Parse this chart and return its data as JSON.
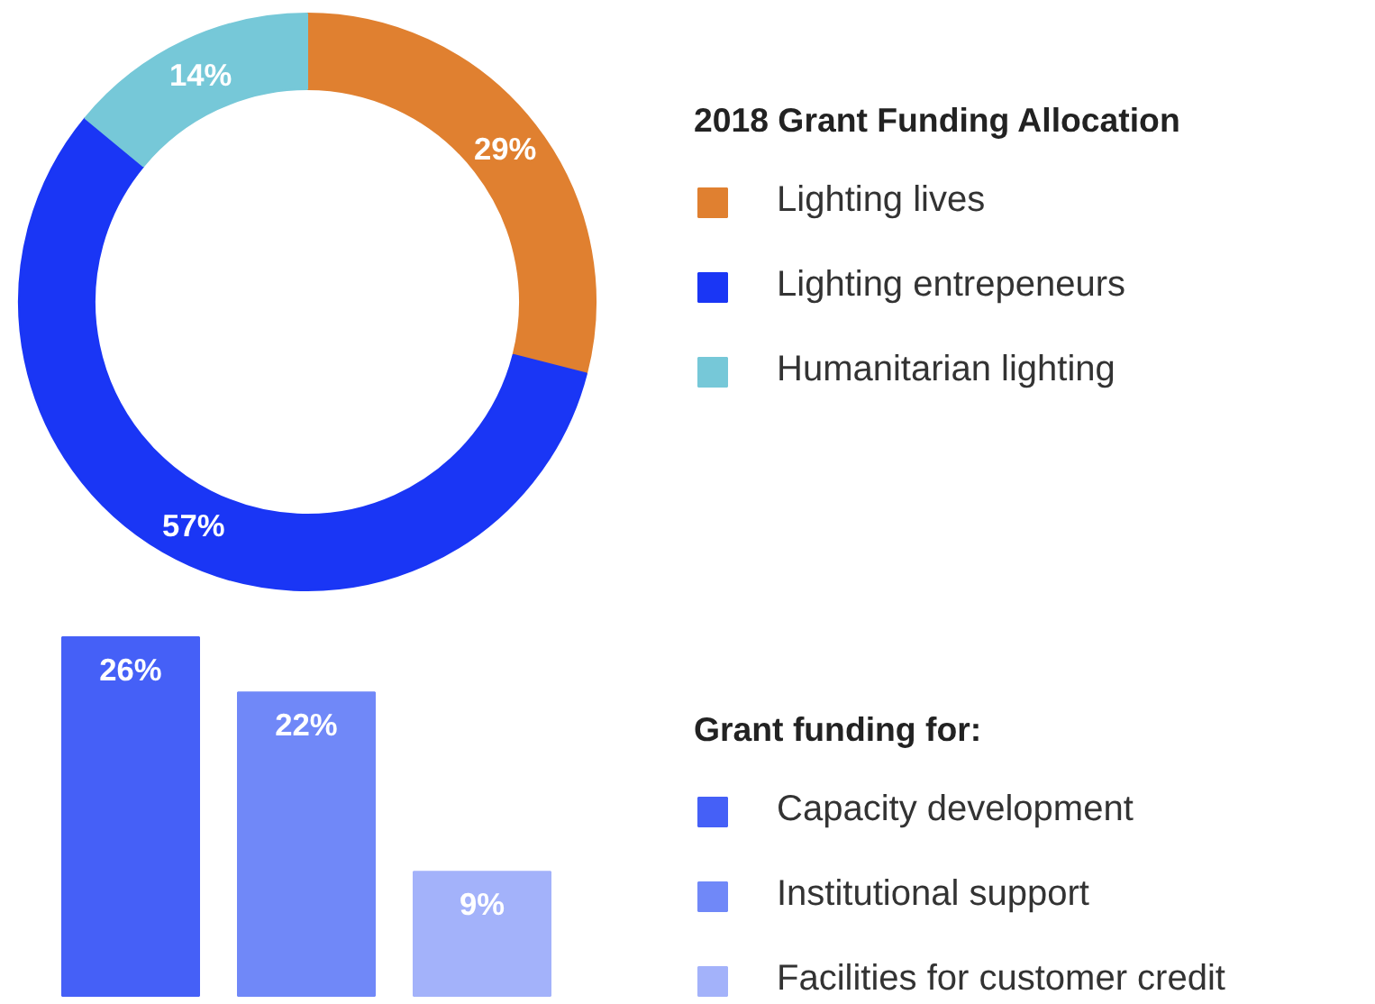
{
  "chart_data": [
    {
      "type": "donut",
      "legend_title": "2018 Grant Funding Allocation",
      "categories": [
        "Lighting lives",
        "Lighting entrepeneurs",
        "Humanitarian lighting"
      ],
      "values": [
        29,
        57,
        14
      ],
      "colors": [
        "#e08030",
        "#1a36f5",
        "#76c8d8"
      ],
      "value_labels": [
        "29%",
        "57%",
        "14%"
      ],
      "legend": "right"
    },
    {
      "type": "bar",
      "legend_title": "Grant funding for:",
      "categories": [
        null
      ],
      "legend": "right",
      "tick_labels": false,
      "series": [
        {
          "name": "Capacity development",
          "color": "#4560f7",
          "values": [
            26
          ],
          "value_labels": [
            "26%"
          ]
        },
        {
          "name": "Institutional support",
          "color": "#7088f8",
          "values": [
            22
          ],
          "value_labels": [
            "22%"
          ]
        },
        {
          "name": "Facilities for customer credit",
          "color": "#a3b2fa",
          "values": [
            9
          ],
          "value_labels": [
            "9%"
          ]
        }
      ]
    }
  ]
}
